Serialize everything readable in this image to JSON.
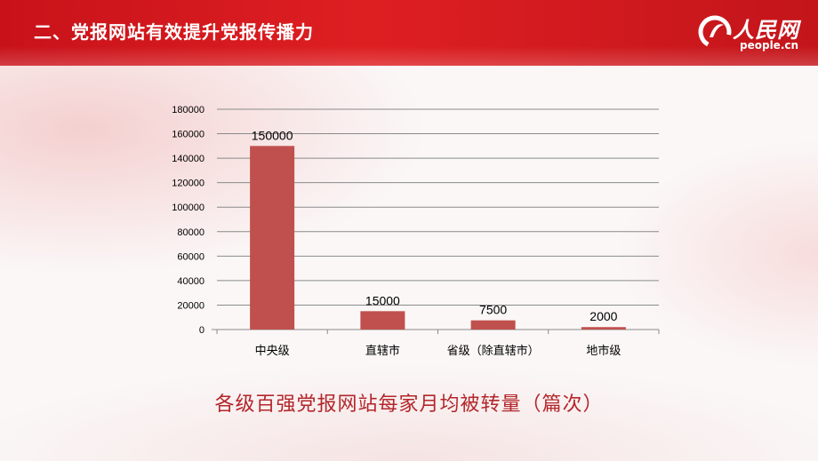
{
  "header": {
    "title": "二、党报网站有效提升党报传播力",
    "logo_cn": "人民网",
    "logo_en": "people.cn"
  },
  "colors": {
    "header_red": "#d71920",
    "bar": "#c0504d",
    "caption": "#b3262b"
  },
  "chart_data": {
    "type": "bar",
    "categories": [
      "中央级",
      "直辖市",
      "省级（除直辖市）",
      "地市级"
    ],
    "values": [
      150000,
      15000,
      7500,
      2000
    ],
    "data_labels": [
      "150000",
      "15000",
      "7500",
      "2000"
    ],
    "title": "",
    "xlabel": "",
    "ylabel": "",
    "ylim": [
      0,
      180000
    ],
    "yticks": [
      0,
      20000,
      40000,
      60000,
      80000,
      100000,
      120000,
      140000,
      160000,
      180000
    ],
    "grid": true,
    "legend": "none"
  },
  "caption": "各级百强党报网站每家月均被转量（篇次）"
}
